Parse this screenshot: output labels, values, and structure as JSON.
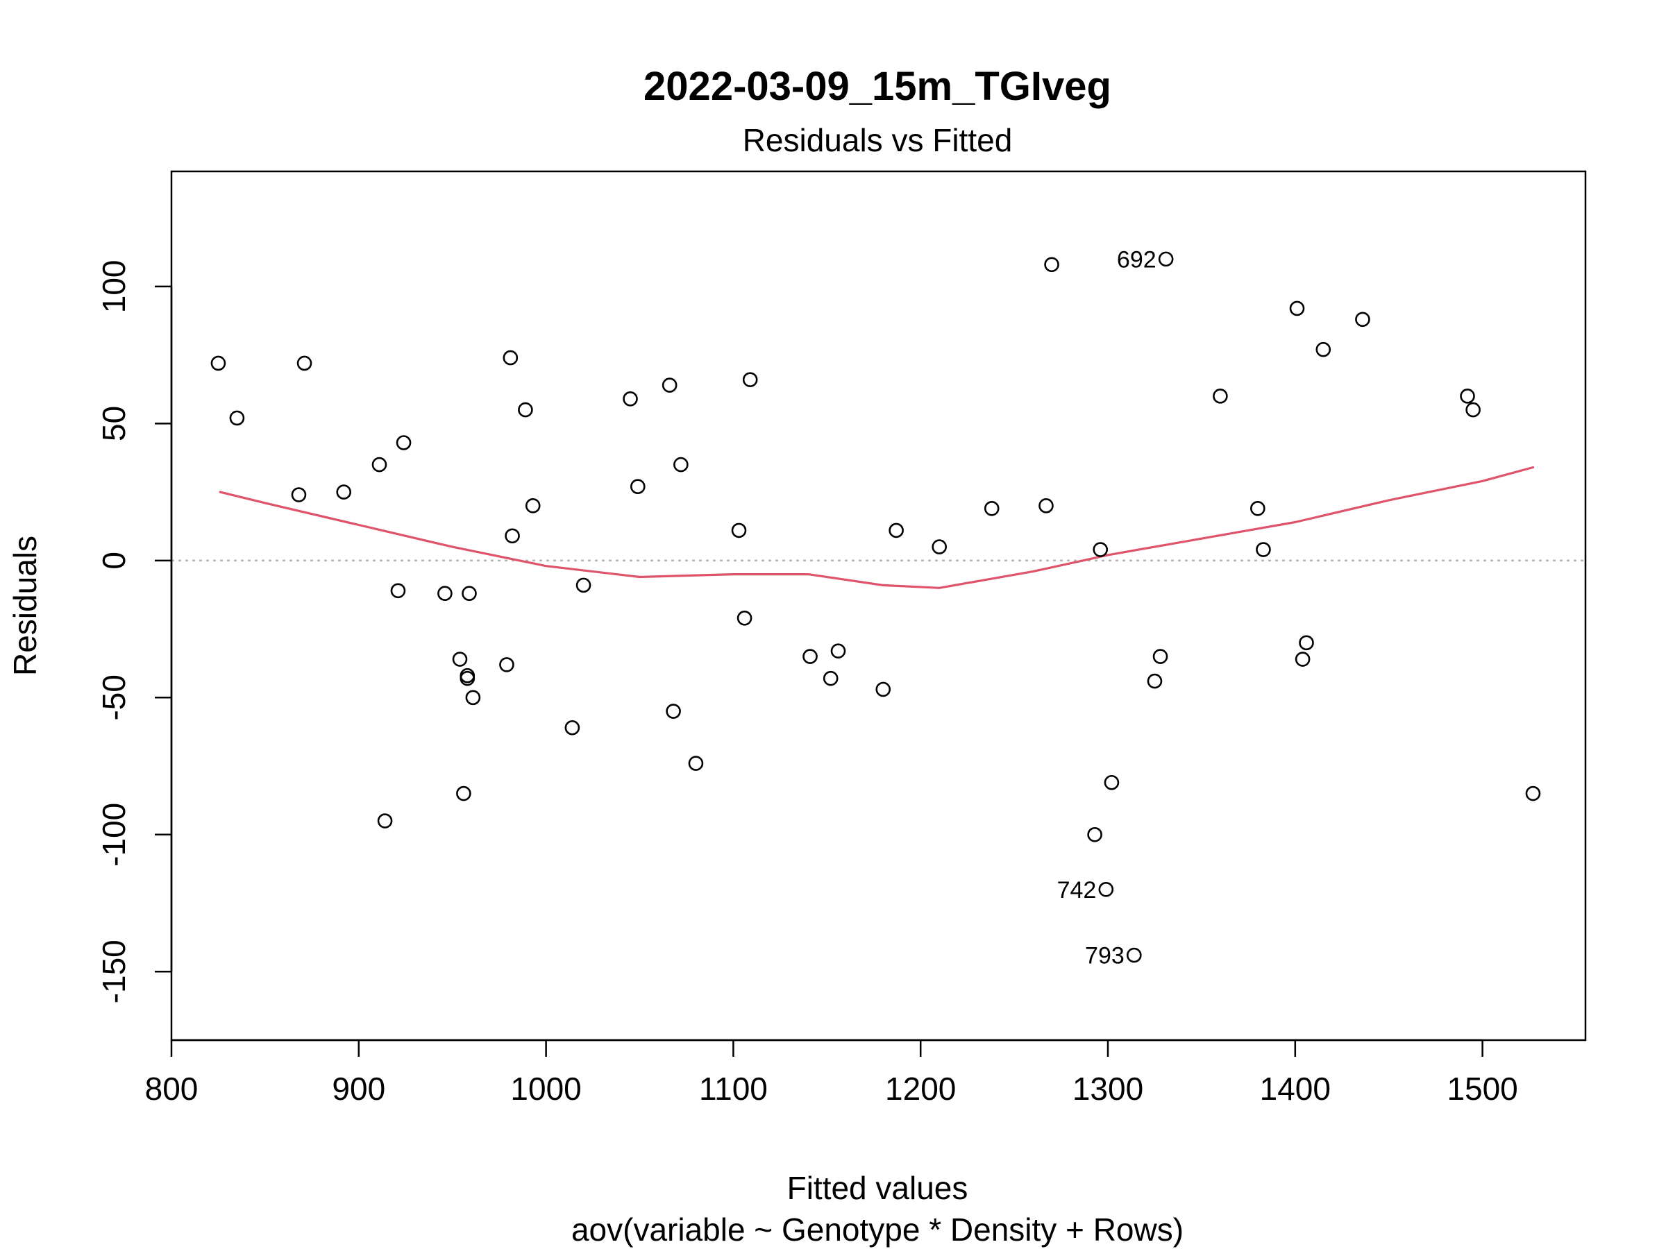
{
  "chart_data": {
    "type": "scatter",
    "title": "2022-03-09_15m_TGIveg",
    "subtitle": "Residuals vs Fitted",
    "xlabel": "Fitted values",
    "xlabel_sub": "aov(variable ~ Genotype * Density + Rows)",
    "ylabel": "Residuals",
    "xlim": [
      800,
      1555
    ],
    "ylim": [
      -175,
      142
    ],
    "x_ticks": [
      800,
      900,
      1000,
      1100,
      1200,
      1300,
      1400,
      1500
    ],
    "y_ticks": [
      -150,
      -100,
      -50,
      0,
      50,
      100
    ],
    "reference_line": {
      "y": 0,
      "style": "dotted",
      "color": "#b3b3b3"
    },
    "colors": {
      "points": "#000000",
      "smoother": "#df536b",
      "frame": "#000000"
    },
    "points": [
      {
        "x": 825,
        "y": 72
      },
      {
        "x": 835,
        "y": 52
      },
      {
        "x": 868,
        "y": 24
      },
      {
        "x": 871,
        "y": 72
      },
      {
        "x": 892,
        "y": 25
      },
      {
        "x": 911,
        "y": 35
      },
      {
        "x": 914,
        "y": -95
      },
      {
        "x": 921,
        "y": -11
      },
      {
        "x": 924,
        "y": 43
      },
      {
        "x": 946,
        "y": -12
      },
      {
        "x": 954,
        "y": -36
      },
      {
        "x": 956,
        "y": -85
      },
      {
        "x": 958,
        "y": -42
      },
      {
        "x": 958,
        "y": -43
      },
      {
        "x": 959,
        "y": -12
      },
      {
        "x": 961,
        "y": -50
      },
      {
        "x": 979,
        "y": -38
      },
      {
        "x": 981,
        "y": 74
      },
      {
        "x": 982,
        "y": 9
      },
      {
        "x": 989,
        "y": 55
      },
      {
        "x": 993,
        "y": 20
      },
      {
        "x": 1014,
        "y": -61
      },
      {
        "x": 1020,
        "y": -9
      },
      {
        "x": 1045,
        "y": 59
      },
      {
        "x": 1049,
        "y": 27
      },
      {
        "x": 1066,
        "y": 64
      },
      {
        "x": 1068,
        "y": -55
      },
      {
        "x": 1072,
        "y": 35
      },
      {
        "x": 1080,
        "y": -74
      },
      {
        "x": 1103,
        "y": 11
      },
      {
        "x": 1106,
        "y": -21
      },
      {
        "x": 1109,
        "y": 66
      },
      {
        "x": 1141,
        "y": -35
      },
      {
        "x": 1152,
        "y": -43
      },
      {
        "x": 1156,
        "y": -33
      },
      {
        "x": 1180,
        "y": -47
      },
      {
        "x": 1187,
        "y": 11
      },
      {
        "x": 1210,
        "y": 5
      },
      {
        "x": 1238,
        "y": 19
      },
      {
        "x": 1267,
        "y": 20
      },
      {
        "x": 1270,
        "y": 108
      },
      {
        "x": 1293,
        "y": -100
      },
      {
        "x": 1296,
        "y": 4
      },
      {
        "x": 1299,
        "y": -120,
        "label": "742"
      },
      {
        "x": 1302,
        "y": -81
      },
      {
        "x": 1314,
        "y": -144,
        "label": "793"
      },
      {
        "x": 1325,
        "y": -44
      },
      {
        "x": 1328,
        "y": -35
      },
      {
        "x": 1331,
        "y": 110,
        "label": "692"
      },
      {
        "x": 1360,
        "y": 60
      },
      {
        "x": 1380,
        "y": 19
      },
      {
        "x": 1383,
        "y": 4
      },
      {
        "x": 1401,
        "y": 92
      },
      {
        "x": 1404,
        "y": -36
      },
      {
        "x": 1406,
        "y": -30
      },
      {
        "x": 1415,
        "y": 77
      },
      {
        "x": 1436,
        "y": 88
      },
      {
        "x": 1492,
        "y": 60
      },
      {
        "x": 1495,
        "y": 55
      },
      {
        "x": 1527,
        "y": -85
      }
    ],
    "smoother": [
      {
        "x": 826,
        "y": 25
      },
      {
        "x": 850,
        "y": 21
      },
      {
        "x": 900,
        "y": 13
      },
      {
        "x": 950,
        "y": 5
      },
      {
        "x": 1000,
        "y": -2
      },
      {
        "x": 1050,
        "y": -6
      },
      {
        "x": 1100,
        "y": -5
      },
      {
        "x": 1140,
        "y": -5
      },
      {
        "x": 1180,
        "y": -9
      },
      {
        "x": 1210,
        "y": -10
      },
      {
        "x": 1260,
        "y": -4
      },
      {
        "x": 1300,
        "y": 2
      },
      {
        "x": 1350,
        "y": 8
      },
      {
        "x": 1400,
        "y": 14
      },
      {
        "x": 1450,
        "y": 22
      },
      {
        "x": 1500,
        "y": 29
      },
      {
        "x": 1527,
        "y": 34
      }
    ]
  }
}
